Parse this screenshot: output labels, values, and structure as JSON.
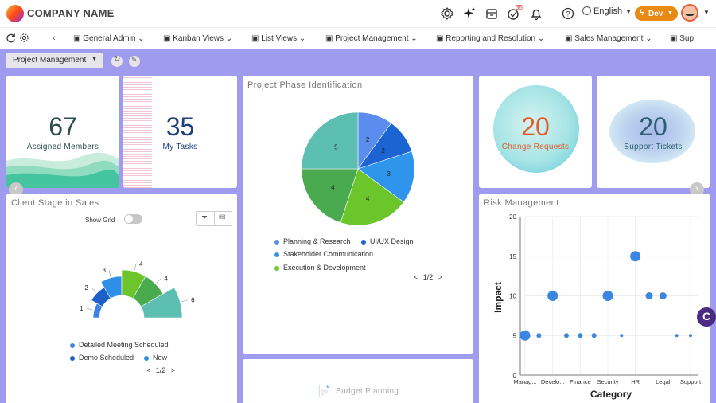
{
  "header": {
    "company_name": "COMPANY NAME",
    "language": "English",
    "env": "Dev",
    "notification_badge": "35"
  },
  "tabs": [
    {
      "label": "General Admin"
    },
    {
      "label": "Kanban Views"
    },
    {
      "label": "List Views"
    },
    {
      "label": "Project Management"
    },
    {
      "label": "Reporting and Resolution"
    },
    {
      "label": "Sales Management"
    },
    {
      "label": "Sup"
    }
  ],
  "toolbar": {
    "dashboard_select": "Project Management"
  },
  "kpis": {
    "assigned": {
      "value": "67",
      "label": "Assigned Members"
    },
    "tasks": {
      "value": "35",
      "label": "My Tasks"
    },
    "changes": {
      "value": "20",
      "label": "Change Requests"
    },
    "tickets": {
      "value": "20",
      "label": "Support Tickets"
    }
  },
  "phase": {
    "title": "Project Phase Identification",
    "legend": [
      "Planning & Research",
      "UI/UX Design",
      "Stakeholder Communication",
      "Execution & Development"
    ],
    "pager": "1/2",
    "slices": [
      {
        "value": 2,
        "color": "#5b8def"
      },
      {
        "value": 2,
        "color": "#1c64d2"
      },
      {
        "value": 3,
        "color": "#2f94ec"
      },
      {
        "value": 4,
        "color": "#6cc62b"
      },
      {
        "value": 4,
        "color": "#4aaa4f"
      },
      {
        "value": 5,
        "color": "#5cbfb1"
      }
    ]
  },
  "client": {
    "title": "Client Stage in Sales",
    "show_grid": "Show Grid",
    "legend": [
      "Detailed Meeting Scheduled",
      "Demo Scheduled",
      "New"
    ],
    "pager": "1/2",
    "slices": [
      {
        "value": 1,
        "color": "#3c82e6"
      },
      {
        "value": 2,
        "color": "#1f5fc8"
      },
      {
        "value": 3,
        "color": "#2f8fe6"
      },
      {
        "value": 4,
        "color": "#6cc62b"
      },
      {
        "value": 4,
        "color": "#4aaa4f"
      },
      {
        "value": 6,
        "color": "#5cbfb1"
      }
    ]
  },
  "risk": {
    "title": "Risk Management",
    "xlabel": "Category",
    "ylabel": "Impact",
    "yticks": [
      "0",
      "5",
      "10",
      "15",
      "20"
    ],
    "xticks": [
      "Manag...",
      "Develo...",
      "Finance",
      "Security",
      "HR",
      "Legal",
      "Support"
    ]
  },
  "budget": {
    "title": "Budget Planning"
  },
  "chart_data": [
    {
      "type": "pie",
      "title": "Project Phase Identification",
      "values": [
        2,
        2,
        3,
        4,
        4,
        5
      ],
      "series": [
        {
          "name": "Planning & Research"
        },
        {
          "name": "UI/UX Design"
        },
        {
          "name": "Stakeholder Communication"
        },
        {
          "name": "Execution & Development"
        }
      ]
    },
    {
      "type": "pie",
      "title": "Client Stage in Sales",
      "values": [
        1,
        2,
        3,
        4,
        4,
        6
      ],
      "series": [
        {
          "name": "Detailed Meeting Scheduled"
        },
        {
          "name": "Demo Scheduled"
        },
        {
          "name": "New"
        }
      ]
    },
    {
      "type": "scatter",
      "title": "Risk Management",
      "xlabel": "Category",
      "ylabel": "Impact",
      "categories": [
        "Manag...",
        "Develo...",
        "Finance",
        "Security",
        "HR",
        "Legal",
        "Support"
      ],
      "ylim": [
        0,
        20
      ],
      "points": [
        {
          "x": 0.0,
          "y": 5,
          "size": 3
        },
        {
          "x": 0.5,
          "y": 5,
          "size": 1
        },
        {
          "x": 1.0,
          "y": 10,
          "size": 3
        },
        {
          "x": 1.5,
          "y": 5,
          "size": 1
        },
        {
          "x": 2.0,
          "y": 5,
          "size": 1
        },
        {
          "x": 2.5,
          "y": 5,
          "size": 1
        },
        {
          "x": 3.0,
          "y": 10,
          "size": 3
        },
        {
          "x": 3.5,
          "y": 5,
          "size": 0.6
        },
        {
          "x": 4.0,
          "y": 15,
          "size": 3
        },
        {
          "x": 4.5,
          "y": 10,
          "size": 2
        },
        {
          "x": 5.0,
          "y": 10,
          "size": 2
        },
        {
          "x": 5.5,
          "y": 5,
          "size": 0.6
        },
        {
          "x": 6.0,
          "y": 5,
          "size": 0.6
        }
      ]
    }
  ]
}
